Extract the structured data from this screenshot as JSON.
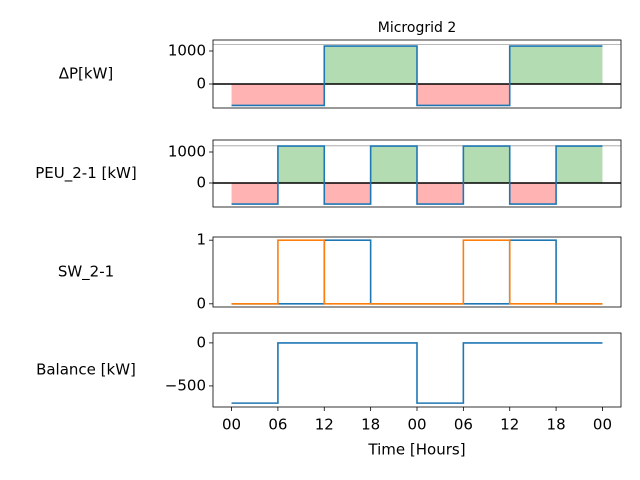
{
  "chart_data": [
    {
      "type": "line",
      "title": "Microgrid 2",
      "ylabel": "ΔP[kW]",
      "x": [
        0,
        12,
        12,
        24,
        24,
        36,
        36,
        48
      ],
      "series": [
        {
          "color": "#1f77b4",
          "values": [
            -650,
            -650,
            1150,
            1150,
            -650,
            -650,
            1150,
            1150
          ]
        }
      ],
      "fill": {
        "positive": "#b3dcb3",
        "negative": "#ffb3b3"
      },
      "hlines": [
        {
          "value": 0,
          "color": "#000000"
        },
        {
          "value": 1200,
          "color": "#a0a0a0"
        }
      ],
      "xlim": [
        -2.4,
        50.4
      ],
      "ylim": [
        -727,
        1333
      ],
      "yticks": [
        0,
        1000
      ]
    },
    {
      "type": "line",
      "ylabel": "PEU_2-1 [kW]",
      "x": [
        0,
        6,
        6,
        12,
        12,
        18,
        18,
        24,
        24,
        30,
        30,
        36,
        36,
        42,
        42,
        48
      ],
      "series": [
        {
          "color": "#1f77b4",
          "values": [
            -680,
            -680,
            1190,
            1190,
            -680,
            -680,
            1190,
            1190,
            -680,
            -680,
            1190,
            1190,
            -680,
            -680,
            1190,
            1190
          ]
        }
      ],
      "fill": {
        "positive": "#b3dcb3",
        "negative": "#ffb3b3"
      },
      "hlines": [
        {
          "value": 0,
          "color": "#000000"
        },
        {
          "value": 1200,
          "color": "#a0a0a0"
        }
      ],
      "xlim": [
        -2.4,
        50.4
      ],
      "ylim": [
        -774,
        1387
      ],
      "yticks": [
        0,
        1000
      ]
    },
    {
      "type": "line",
      "ylabel": "SW_2-1",
      "x": [
        0,
        6,
        6,
        12,
        12,
        18,
        18,
        30,
        30,
        36,
        36,
        42,
        42,
        48
      ],
      "series": [
        {
          "color": "#1f77b4",
          "values": [
            0,
            0,
            0,
            0,
            1,
            1,
            0,
            0,
            0,
            0,
            1,
            1,
            0,
            0
          ]
        },
        {
          "color": "#ff7f0e",
          "values": [
            0,
            0,
            1,
            1,
            0,
            0,
            0,
            0,
            1,
            1,
            0,
            0,
            0,
            0
          ]
        }
      ],
      "xlim": [
        -2.4,
        50.4
      ],
      "ylim": [
        -0.05,
        1.05
      ],
      "yticks": [
        0,
        1
      ]
    },
    {
      "type": "line",
      "ylabel": "Balance [kW]",
      "xlabel": "Time [Hours]",
      "x": [
        0,
        6,
        6,
        24,
        24,
        30,
        30,
        48
      ],
      "series": [
        {
          "color": "#1f77b4",
          "values": [
            -700,
            -700,
            0,
            0,
            -700,
            -700,
            0,
            0
          ]
        }
      ],
      "xlim": [
        -2.4,
        50.4
      ],
      "ylim": [
        -745,
        115
      ],
      "yticks": [
        {
          "value": -500,
          "label": "−500"
        },
        0
      ],
      "xticks": [
        {
          "value": 0,
          "label": "00"
        },
        {
          "value": 6,
          "label": "06"
        },
        12,
        18,
        {
          "value": 24,
          "label": "00"
        },
        {
          "value": 30,
          "label": "06"
        },
        {
          "value": 36,
          "label": "12"
        },
        {
          "value": 42,
          "label": "18"
        },
        {
          "value": 48,
          "label": "00"
        }
      ]
    }
  ]
}
